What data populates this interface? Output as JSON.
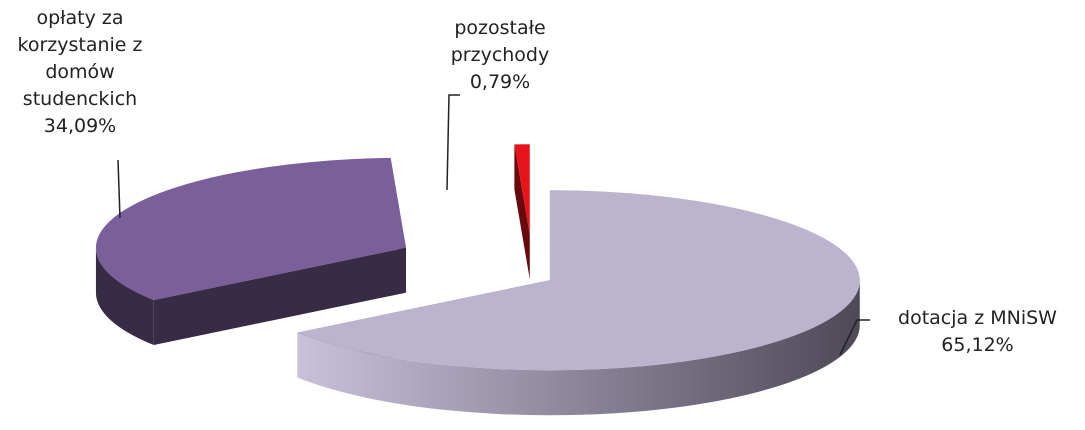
{
  "chart_data": {
    "type": "pie3d",
    "categories": [
      "dotacja z MNiSW",
      "opłaty za korzystanie z domów studenckich",
      "pozostałe przychody"
    ],
    "values": [
      65.12,
      34.09,
      0.79
    ],
    "value_labels": [
      "65,12%",
      "34,09%",
      "0,79%"
    ],
    "colors": [
      "#bcb3cf",
      "#7a5f9a",
      "#e8141b"
    ]
  }
}
